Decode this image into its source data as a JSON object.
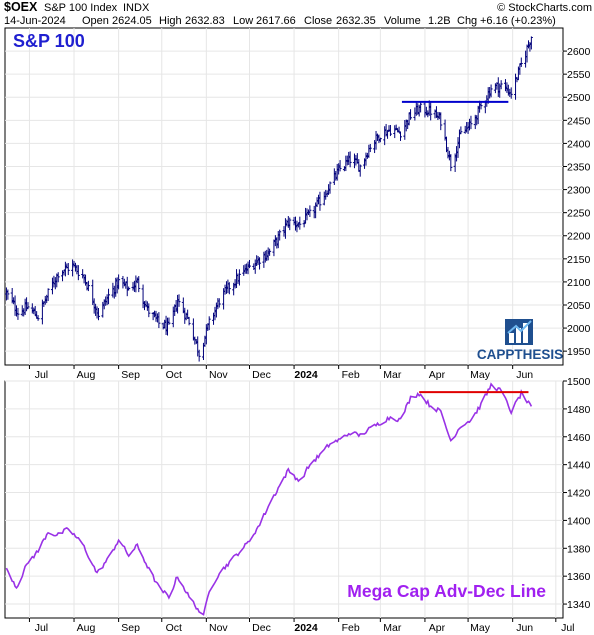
{
  "header": {
    "symbol": "$OEX",
    "name": "S&P 100 Index",
    "exchange": "INDX",
    "source": "© StockCharts.com",
    "date": "14-Jun-2024",
    "open_label": "Open",
    "open": "2624.05",
    "high_label": "High",
    "high": "2632.83",
    "low_label": "Low",
    "low": "2617.66",
    "close_label": "Close",
    "close": "2632.35",
    "volume_label": "Volume",
    "volume": "1.2B",
    "chg_label": "Chg",
    "chg": "+6.16 (+0.23%)"
  },
  "logo": {
    "text": "CAPPTHESIS",
    "icon": "bar-chart-logo-icon"
  },
  "colors": {
    "price_bars": "#00007a",
    "resistance_top": "#0000cc",
    "ad_line": "#9932e6",
    "resistance_bottom": "#e00000",
    "title_top": "#1f1fd0",
    "title_bottom": "#a020f0"
  },
  "chart_data": [
    {
      "type": "ohlc",
      "title": "S&P 100",
      "grid": false,
      "xticks": [
        "Jul",
        "Aug",
        "Sep",
        "Oct",
        "Nov",
        "Dec",
        "2024",
        "Feb",
        "Mar",
        "Apr",
        "May",
        "Jun"
      ],
      "xticks_bold": [
        "2024"
      ],
      "ylim": [
        1920,
        2650
      ],
      "yticks": [
        1950,
        2000,
        2050,
        2100,
        2150,
        2200,
        2250,
        2300,
        2350,
        2400,
        2450,
        2500,
        2550,
        2600
      ],
      "anchors": [
        {
          "date": "2023-06-15",
          "close": 2075
        },
        {
          "date": "2023-06-23",
          "close": 2035
        },
        {
          "date": "2023-06-30",
          "close": 2045
        },
        {
          "date": "2023-07-07",
          "close": 2025
        },
        {
          "date": "2023-07-14",
          "close": 2075
        },
        {
          "date": "2023-07-21",
          "close": 2120
        },
        {
          "date": "2023-07-31",
          "close": 2135
        },
        {
          "date": "2023-08-08",
          "close": 2110
        },
        {
          "date": "2023-08-18",
          "close": 2030
        },
        {
          "date": "2023-08-25",
          "close": 2070
        },
        {
          "date": "2023-09-01",
          "close": 2100
        },
        {
          "date": "2023-09-08",
          "close": 2085
        },
        {
          "date": "2023-09-14",
          "close": 2100
        },
        {
          "date": "2023-09-21",
          "close": 2040
        },
        {
          "date": "2023-09-29",
          "close": 2010
        },
        {
          "date": "2023-10-06",
          "close": 2000
        },
        {
          "date": "2023-10-12",
          "close": 2060
        },
        {
          "date": "2023-10-20",
          "close": 2015
        },
        {
          "date": "2023-10-27",
          "close": 1945
        },
        {
          "date": "2023-11-03",
          "close": 2010
        },
        {
          "date": "2023-11-10",
          "close": 2060
        },
        {
          "date": "2023-11-17",
          "close": 2090
        },
        {
          "date": "2023-11-30",
          "close": 2130
        },
        {
          "date": "2023-12-08",
          "close": 2150
        },
        {
          "date": "2023-12-15",
          "close": 2165
        },
        {
          "date": "2023-12-22",
          "close": 2200
        },
        {
          "date": "2023-12-28",
          "close": 2230
        },
        {
          "date": "2024-01-05",
          "close": 2225
        },
        {
          "date": "2024-01-12",
          "close": 2245
        },
        {
          "date": "2024-01-19",
          "close": 2275
        },
        {
          "date": "2024-01-26",
          "close": 2310
        },
        {
          "date": "2024-02-02",
          "close": 2345
        },
        {
          "date": "2024-02-09",
          "close": 2365
        },
        {
          "date": "2024-02-16",
          "close": 2350
        },
        {
          "date": "2024-02-23",
          "close": 2395
        },
        {
          "date": "2024-03-01",
          "close": 2420
        },
        {
          "date": "2024-03-08",
          "close": 2430
        },
        {
          "date": "2024-03-15",
          "close": 2425
        },
        {
          "date": "2024-03-22",
          "close": 2460
        },
        {
          "date": "2024-03-28",
          "close": 2475
        },
        {
          "date": "2024-04-05",
          "close": 2470
        },
        {
          "date": "2024-04-12",
          "close": 2450
        },
        {
          "date": "2024-04-19",
          "close": 2355
        },
        {
          "date": "2024-04-26",
          "close": 2420
        },
        {
          "date": "2024-05-03",
          "close": 2440
        },
        {
          "date": "2024-05-10",
          "close": 2480
        },
        {
          "date": "2024-05-17",
          "close": 2520
        },
        {
          "date": "2024-05-24",
          "close": 2525
        },
        {
          "date": "2024-05-31",
          "close": 2510
        },
        {
          "date": "2024-06-07",
          "close": 2570
        },
        {
          "date": "2024-06-14",
          "close": 2632
        }
      ],
      "annotations": [
        {
          "type": "hline",
          "y": 2490,
          "x_start": "2024-03-16",
          "x_end": "2024-05-29",
          "color": "#0000cc"
        }
      ]
    },
    {
      "type": "line",
      "title": "Mega Cap Adv-Dec Line",
      "grid": false,
      "xticks": [
        "Jul",
        "Aug",
        "Sep",
        "Oct",
        "Nov",
        "Dec",
        "2024",
        "Feb",
        "Mar",
        "Apr",
        "May",
        "Jun",
        "Jul"
      ],
      "xticks_bold": [
        "2024"
      ],
      "ylim": [
        1330,
        1500
      ],
      "yticks": [
        1340,
        1360,
        1380,
        1400,
        1420,
        1440,
        1460,
        1480,
        1500
      ],
      "anchors": [
        {
          "date": "2023-06-15",
          "value": 1366
        },
        {
          "date": "2023-06-22",
          "value": 1352
        },
        {
          "date": "2023-06-30",
          "value": 1370
        },
        {
          "date": "2023-07-07",
          "value": 1378
        },
        {
          "date": "2023-07-14",
          "value": 1392
        },
        {
          "date": "2023-07-20",
          "value": 1389
        },
        {
          "date": "2023-07-28",
          "value": 1394
        },
        {
          "date": "2023-08-07",
          "value": 1383
        },
        {
          "date": "2023-08-17",
          "value": 1362
        },
        {
          "date": "2023-08-25",
          "value": 1373
        },
        {
          "date": "2023-09-01",
          "value": 1386
        },
        {
          "date": "2023-09-08",
          "value": 1375
        },
        {
          "date": "2023-09-14",
          "value": 1382
        },
        {
          "date": "2023-09-22",
          "value": 1365
        },
        {
          "date": "2023-09-29",
          "value": 1352
        },
        {
          "date": "2023-10-06",
          "value": 1345
        },
        {
          "date": "2023-10-12",
          "value": 1360
        },
        {
          "date": "2023-10-20",
          "value": 1345
        },
        {
          "date": "2023-10-30",
          "value": 1331
        },
        {
          "date": "2023-11-03",
          "value": 1350
        },
        {
          "date": "2023-11-10",
          "value": 1362
        },
        {
          "date": "2023-11-17",
          "value": 1370
        },
        {
          "date": "2023-11-30",
          "value": 1384
        },
        {
          "date": "2023-12-08",
          "value": 1397
        },
        {
          "date": "2023-12-15",
          "value": 1412
        },
        {
          "date": "2023-12-22",
          "value": 1425
        },
        {
          "date": "2023-12-28",
          "value": 1436
        },
        {
          "date": "2024-01-05",
          "value": 1428
        },
        {
          "date": "2024-01-12",
          "value": 1440
        },
        {
          "date": "2024-01-19",
          "value": 1447
        },
        {
          "date": "2024-01-26",
          "value": 1455
        },
        {
          "date": "2024-02-02",
          "value": 1458
        },
        {
          "date": "2024-02-09",
          "value": 1463
        },
        {
          "date": "2024-02-16",
          "value": 1461
        },
        {
          "date": "2024-02-23",
          "value": 1466
        },
        {
          "date": "2024-03-01",
          "value": 1470
        },
        {
          "date": "2024-03-08",
          "value": 1474
        },
        {
          "date": "2024-03-15",
          "value": 1472
        },
        {
          "date": "2024-03-22",
          "value": 1488
        },
        {
          "date": "2024-03-28",
          "value": 1491
        },
        {
          "date": "2024-04-05",
          "value": 1482
        },
        {
          "date": "2024-04-12",
          "value": 1478
        },
        {
          "date": "2024-04-19",
          "value": 1457
        },
        {
          "date": "2024-04-26",
          "value": 1468
        },
        {
          "date": "2024-05-03",
          "value": 1472
        },
        {
          "date": "2024-05-10",
          "value": 1483
        },
        {
          "date": "2024-05-17",
          "value": 1497
        },
        {
          "date": "2024-05-24",
          "value": 1493
        },
        {
          "date": "2024-05-31",
          "value": 1478
        },
        {
          "date": "2024-06-07",
          "value": 1491
        },
        {
          "date": "2024-06-14",
          "value": 1481
        }
      ],
      "annotations": [
        {
          "type": "hline",
          "y": 1492,
          "x_start": "2024-03-28",
          "x_end": "2024-06-12",
          "color": "#e00000"
        }
      ]
    }
  ]
}
